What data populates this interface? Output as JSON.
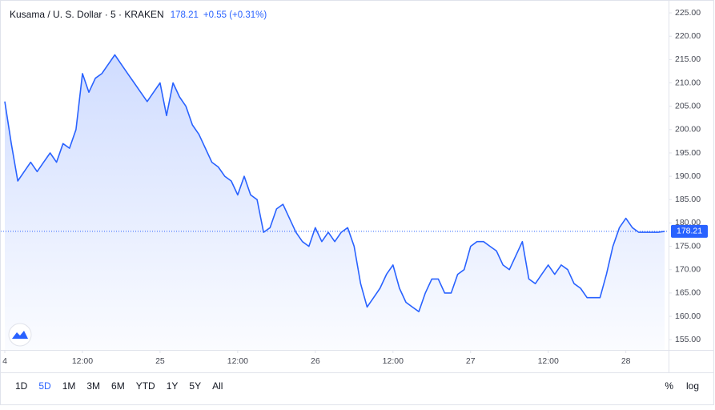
{
  "chart_data": {
    "type": "line",
    "title": "Kusama / U. S. Dollar · 5 · KRAKEN",
    "last_price": 178.21,
    "change": "+0.55 (+0.31%)",
    "color": "#2962ff",
    "x": [
      0,
      1,
      2,
      3,
      4,
      5,
      6,
      7,
      8,
      9,
      10,
      11,
      12,
      13,
      14,
      15,
      16,
      17,
      18,
      19,
      20,
      21,
      22,
      23,
      24,
      25,
      26,
      27,
      28,
      29,
      30,
      31,
      32,
      33,
      34,
      35,
      36,
      37,
      38,
      39,
      40,
      41,
      42,
      43,
      44,
      45,
      46,
      47,
      48,
      49,
      50,
      51,
      52,
      53,
      54,
      55,
      56,
      57,
      58,
      59,
      60,
      61,
      62,
      63,
      64,
      65,
      66,
      67,
      68,
      69,
      70,
      71,
      72,
      73,
      74,
      75,
      76,
      77,
      78,
      79,
      80,
      81,
      82,
      83,
      84,
      85,
      86,
      87,
      88,
      89,
      90,
      91,
      92,
      93,
      94,
      95,
      96,
      97,
      98,
      99,
      100,
      101,
      102
    ],
    "values": [
      206,
      197,
      189,
      191,
      193,
      191,
      193,
      195,
      193,
      197,
      196,
      200,
      212,
      208,
      211,
      212,
      214,
      216,
      214,
      212,
      210,
      208,
      206,
      208,
      210,
      203,
      210,
      207,
      205,
      201,
      199,
      196,
      193,
      192,
      190,
      189,
      186,
      190,
      186,
      185,
      178,
      179,
      183,
      184,
      181,
      178,
      176,
      175,
      179,
      176,
      178,
      176,
      178,
      179,
      175,
      167,
      162,
      164,
      166,
      169,
      171,
      166,
      163,
      162,
      161,
      165,
      168,
      168,
      165,
      165,
      169,
      170,
      175,
      176,
      176,
      175,
      174,
      171,
      170,
      173,
      176,
      168,
      167,
      169,
      171,
      169,
      171,
      170,
      167,
      166,
      164,
      164,
      164,
      169,
      175,
      179,
      181,
      179,
      178,
      178,
      178,
      178,
      178.21
    ],
    "xlim": [
      0,
      102.6
    ],
    "xticks": [
      {
        "value": 0,
        "label": "4"
      },
      {
        "value": 12,
        "label": "12:00"
      },
      {
        "value": 24,
        "label": "25"
      },
      {
        "value": 36,
        "label": "12:00"
      },
      {
        "value": 48,
        "label": "26"
      },
      {
        "value": 60,
        "label": "12:00"
      },
      {
        "value": 72,
        "label": "27"
      },
      {
        "value": 84,
        "label": "12:00"
      },
      {
        "value": 96,
        "label": "28"
      }
    ],
    "ylim": [
      152.8,
      226.9
    ],
    "yticks": [
      {
        "value": 155,
        "label": "155.00"
      },
      {
        "value": 160,
        "label": "160.00"
      },
      {
        "value": 165,
        "label": "165.00"
      },
      {
        "value": 170,
        "label": "170.00"
      },
      {
        "value": 175,
        "label": "175.00"
      },
      {
        "value": 180,
        "label": "180.00"
      },
      {
        "value": 185,
        "label": "185.00"
      },
      {
        "value": 190,
        "label": "190.00"
      },
      {
        "value": 195,
        "label": "195.00"
      },
      {
        "value": 200,
        "label": "200.00"
      },
      {
        "value": 205,
        "label": "205.00"
      },
      {
        "value": 210,
        "label": "210.00"
      },
      {
        "value": 215,
        "label": "215.00"
      },
      {
        "value": 220,
        "label": "220.00"
      },
      {
        "value": 225,
        "label": "225.00"
      }
    ],
    "grid": false,
    "ranges": [
      "1D",
      "5D",
      "1M",
      "3M",
      "6M",
      "YTD",
      "1Y",
      "5Y",
      "All"
    ],
    "active_range": 1,
    "scale_buttons": [
      "%",
      "log"
    ]
  }
}
